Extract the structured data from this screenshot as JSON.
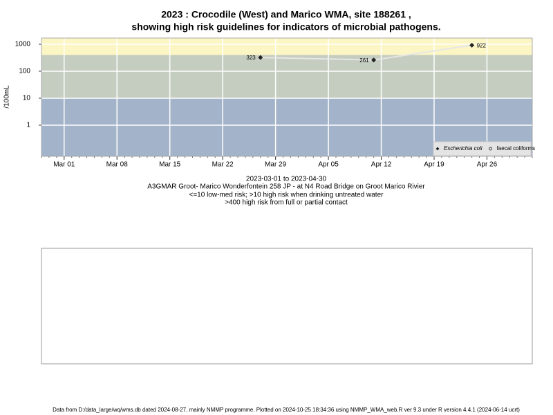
{
  "chart_data": {
    "type": "line",
    "title": "2023 : Crocodile (West) and Marico WMA, site 188261 ,",
    "subtitle": "showing high risk guidelines for indicators of microbial pathogens.",
    "y_label": "/100mL",
    "date_range": "2023-03-01 to 2023-04-30",
    "site": "A3GMAR Groot- Marico Wonderfontein 258 JP - at N4 Road Bridge on Groot Marico Rivier",
    "guideline_1": "<=10 low-med risk; >10 high risk when drinking untreated water",
    "guideline_2": ">400 high risk from full or partial contact",
    "footer": "Data from D:/data_large/wq/wms.db dated 2024-08-27, mainly NMMP programme. Plotted on 2024-10-25 18:34:36 using NMMP_WMA_web.R ver 9.3 under R version 4.4.1 (2024-06-14 ucrt)",
    "x": [
      "2023-03-27",
      "2023-04-11",
      "2023-04-24"
    ],
    "series": [
      {
        "name": "Escherichia coli",
        "color": "#222222",
        "line_color": "#e6e6e6",
        "marker": "diamond",
        "values": [
          323,
          261,
          922
        ]
      },
      {
        "name": "faecal coliforms",
        "color": "#444444",
        "marker": "circle",
        "values": [
          null,
          null,
          null
        ]
      }
    ],
    "xlim": [
      "2023-02-26",
      "2023-05-02"
    ],
    "xticks": [
      {
        "value": "2023-03-01",
        "label": "Mar 01"
      },
      {
        "value": "2023-03-08",
        "label": "Mar 08"
      },
      {
        "value": "2023-03-15",
        "label": "Mar 15"
      },
      {
        "value": "2023-03-22",
        "label": "Mar 22"
      },
      {
        "value": "2023-03-29",
        "label": "Mar 29"
      },
      {
        "value": "2023-04-05",
        "label": "Apr 05"
      },
      {
        "value": "2023-04-12",
        "label": "Apr 12"
      },
      {
        "value": "2023-04-19",
        "label": "Apr 19"
      },
      {
        "value": "2023-04-26",
        "label": "Apr 26"
      }
    ],
    "ylim": [
      0.07,
      1700
    ],
    "yticks": [
      1,
      10,
      100,
      1000
    ],
    "log_scale": true,
    "grid": true,
    "grid_color": "#ffffff",
    "bands": [
      {
        "from": 0.07,
        "to": 10,
        "color": "#a3b3c9"
      },
      {
        "from": 10,
        "to": 400,
        "color": "#c4cdbf"
      },
      {
        "from": 400,
        "to": 1700,
        "color": "#fcf6c5"
      }
    ],
    "legend": "bottom-right"
  }
}
